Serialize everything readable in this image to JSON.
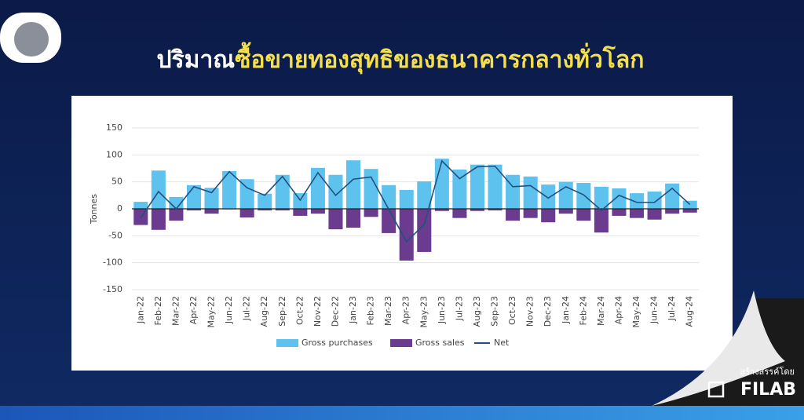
{
  "header": {
    "title_white": "ปริมาณ",
    "title_highlight": "ซื้อขายทองสุทธิของธนาคารกลางทั่วโลก"
  },
  "footer": {
    "credit": "สร้างสรรค์โดย",
    "brand": "FILAB"
  },
  "chart_data": {
    "type": "bar",
    "y_label": "Tonnes",
    "categories": [
      "Jan-22",
      "Feb-22",
      "Mar-22",
      "Apr-22",
      "May-22",
      "Jun-22",
      "Jul-22",
      "Aug-22",
      "Sep-22",
      "Oct-22",
      "Nov-22",
      "Dec-22",
      "Jan-23",
      "Feb-23",
      "Mar-23",
      "Apr-23",
      "May-23",
      "Jun-23",
      "Jul-23",
      "Aug-23",
      "Sep-23",
      "Oct-23",
      "Nov-23",
      "Dec-23",
      "Jan-24",
      "Feb-24",
      "Mar-24",
      "Apr-24",
      "May-24",
      "Jun-24",
      "Jul-24",
      "Aug-24"
    ],
    "series": [
      {
        "name": "Gross purchases",
        "type": "bar",
        "color": "#5ec2ee",
        "values": [
          13,
          71,
          22,
          44,
          39,
          70,
          55,
          28,
          63,
          29,
          76,
          63,
          90,
          74,
          44,
          35,
          51,
          93,
          73,
          82,
          82,
          63,
          60,
          45,
          50,
          48,
          41,
          38,
          29,
          32,
          47,
          15
        ]
      },
      {
        "name": "Gross sales",
        "type": "bar",
        "color": "#6a3b8e",
        "values": [
          -30,
          -39,
          -22,
          -3,
          -9,
          -1,
          -16,
          -3,
          -3,
          -13,
          -9,
          -38,
          -35,
          -15,
          -45,
          -96,
          -80,
          -4,
          -17,
          -4,
          -3,
          -22,
          -17,
          -25,
          -9,
          -22,
          -44,
          -13,
          -17,
          -20,
          -9,
          -7
        ]
      },
      {
        "name": "Net",
        "type": "line",
        "color": "#23507e",
        "values": [
          -17,
          32,
          0,
          41,
          30,
          69,
          39,
          25,
          60,
          16,
          67,
          25,
          55,
          59,
          -1,
          -61,
          -29,
          89,
          56,
          78,
          79,
          41,
          43,
          20,
          41,
          26,
          -3,
          25,
          12,
          12,
          38,
          8
        ]
      }
    ],
    "ylim": [
      -150,
      150
    ],
    "yticks": [
      -150,
      -100,
      -50,
      0,
      50,
      100,
      150
    ],
    "grid": true,
    "legend": "bottom"
  }
}
